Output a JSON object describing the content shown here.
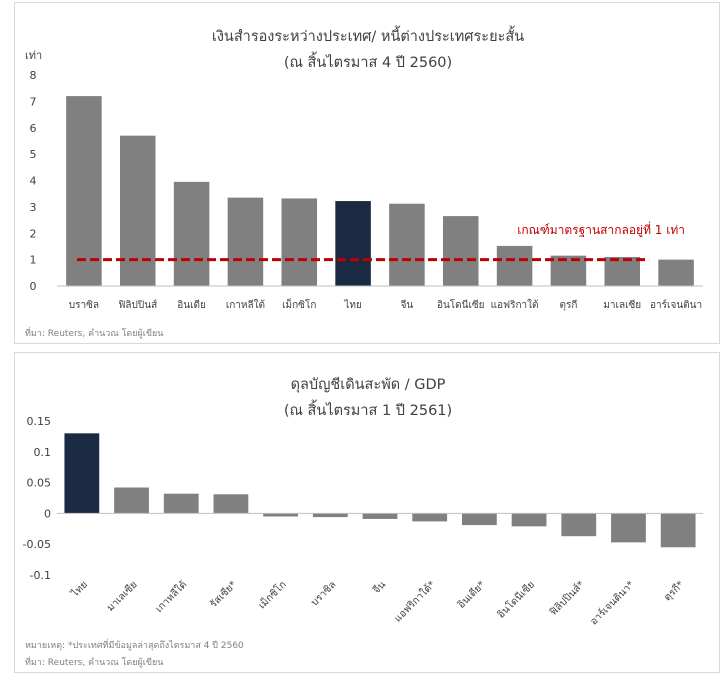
{
  "colors": {
    "bar": "#808080",
    "highlight": "#1b2a43",
    "benchmark": "#c00000",
    "text": "#404040",
    "note": "#7f7f7f"
  },
  "chart_data": [
    {
      "type": "bar",
      "title": "เงินสำรองระหว่างประเทศ/ หนี้ต่างประเทศระยะสั้น",
      "subtitle": "(ณ สิ้นไตรมาส 4 ปี 2560)",
      "ylabel": "เท่า",
      "xlabel": "",
      "ylim": [
        0,
        8
      ],
      "yticks": [
        "0",
        "1",
        "2",
        "3",
        "4",
        "5",
        "6",
        "7",
        "8"
      ],
      "categories": [
        "บราซิล",
        "ฟิลิปปินส์",
        "อินเดีย",
        "เกาหลีใต้",
        "เม็กซิโก",
        "ไทย",
        "จีน",
        "อินโดนีเซีย",
        "แอฟริกาใต้",
        "ตุรกี",
        "มาเลเซีย",
        "อาร์เจนตินา"
      ],
      "values": [
        7.2,
        5.7,
        3.95,
        3.35,
        3.32,
        3.22,
        3.12,
        2.65,
        1.52,
        1.15,
        1.1,
        1.0
      ],
      "highlight_index": 5,
      "reference_line": {
        "value": 1,
        "label": "เกณฑ์มาตรฐานสากลอยู่ที่ 1 เท่า"
      },
      "grid": false,
      "legend": "none",
      "note": "ที่มา: Reuters, คำนวณ โดยผู้เขียน"
    },
    {
      "type": "bar",
      "title": "ดุลบัญชีเดินสะพัด / GDP",
      "subtitle": "(ณ สิ้นไตรมาส 1 ปี 2561)",
      "xlabel": "",
      "ylabel": "",
      "ylim": [
        -0.1,
        0.15
      ],
      "yticks": [
        "0.15",
        "0.1",
        "0.05",
        "0",
        "-0.05",
        "-0.1"
      ],
      "categories": [
        "ไทย",
        "มาเลเซีย",
        "เกาหลีใต้",
        "รัสเซีย*",
        "เม็กซิโก",
        "บราซิล",
        "จีน",
        "แอฟริกาใต้*",
        "อินเดีย*",
        "อินโดนีเซีย",
        "ฟิลิปปินส์*",
        "อาร์เจนตินา*",
        "ตุรกี*"
      ],
      "values": [
        0.13,
        0.042,
        0.032,
        0.031,
        -0.005,
        -0.006,
        -0.009,
        -0.013,
        -0.019,
        -0.021,
        -0.037,
        -0.047,
        -0.055
      ],
      "highlight_index": 0,
      "grid": false,
      "legend": "none",
      "note_lines": [
        "หมายเหตุ: *ประเทศที่มีข้อมูลล่าสุดถึงไตรมาส 4 ปี 2560",
        "ที่มา: Reuters, คำนวณ โดยผู้เขียน"
      ]
    }
  ]
}
